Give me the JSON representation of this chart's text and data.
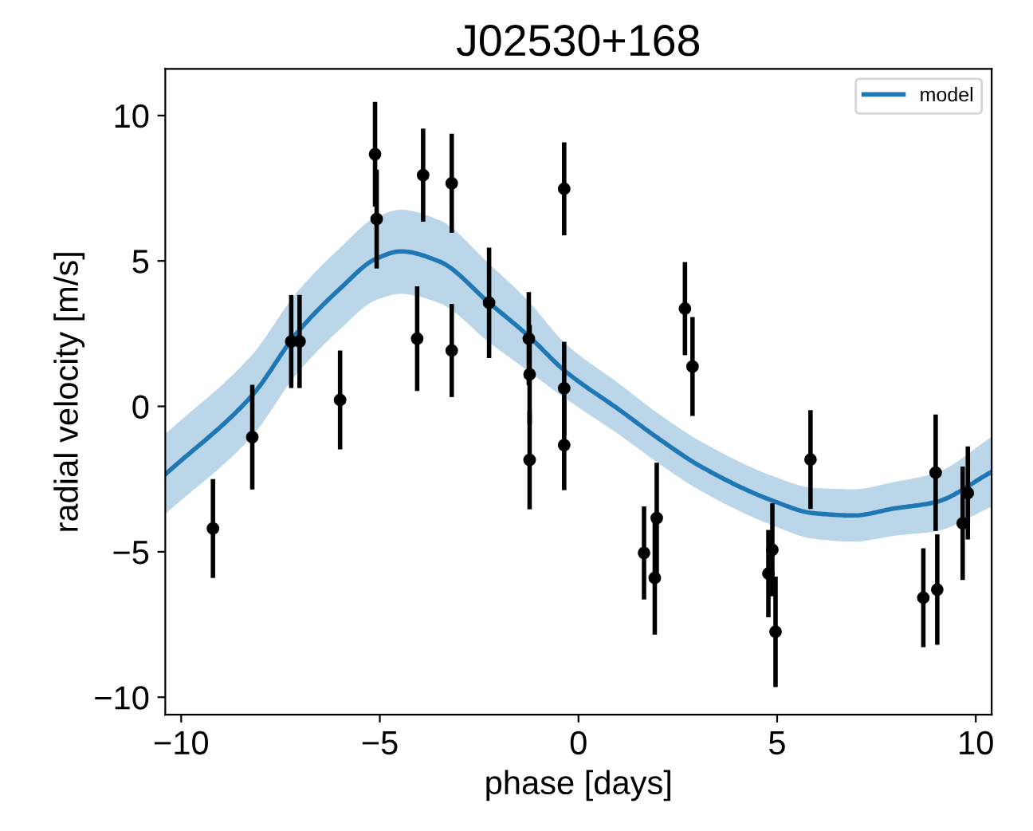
{
  "chart_data": {
    "type": "scatter",
    "title": "J02530+168",
    "xlabel": "phase [days]",
    "ylabel": "radial velocity [m/s]",
    "xlim": [
      -10.4,
      10.4
    ],
    "ylim": [
      -10.6,
      11.6
    ],
    "xticks": [
      {
        "value": -10,
        "label": "−10"
      },
      {
        "value": -5,
        "label": "−5"
      },
      0,
      5,
      10
    ],
    "yticks": [
      {
        "value": -10,
        "label": "−10"
      },
      {
        "value": -5,
        "label": "−5"
      },
      0,
      5,
      10
    ],
    "grid": false,
    "legend": "top right",
    "series": [
      {
        "color": "#000000",
        "marker": "circle",
        "x": [
          -9.2,
          -8.21,
          -7.23,
          -7.02,
          -6.0,
          -5.12,
          -5.08,
          -4.06,
          -3.91,
          -3.19,
          -3.19,
          -2.25,
          -1.25,
          -1.23,
          -1.23,
          -0.36,
          -0.36,
          -0.36,
          2.68,
          2.87,
          1.65,
          1.92,
          1.97,
          4.78,
          4.88,
          4.96,
          5.84,
          8.68,
          8.99,
          9.03,
          9.67,
          9.8
        ],
        "values": [
          -4.2,
          -1.06,
          2.23,
          2.23,
          0.22,
          8.67,
          6.44,
          2.33,
          7.95,
          7.67,
          1.92,
          3.56,
          2.33,
          1.1,
          -1.84,
          7.48,
          0.62,
          -1.33,
          3.36,
          1.37,
          -5.04,
          -5.9,
          -3.84,
          -5.75,
          -4.93,
          -7.75,
          -1.83,
          -6.58,
          -2.28,
          -6.3,
          -4.02,
          -2.98
        ],
        "errors": [
          1.7,
          1.8,
          1.6,
          1.6,
          1.7,
          1.8,
          1.7,
          1.8,
          1.6,
          1.7,
          1.6,
          1.9,
          1.6,
          1.7,
          1.7,
          1.6,
          1.6,
          1.55,
          1.6,
          1.7,
          1.6,
          1.95,
          1.9,
          1.5,
          1.6,
          1.9,
          1.7,
          1.7,
          2.0,
          1.9,
          1.95,
          1.6
        ]
      },
      {
        "type": "line",
        "name": "model",
        "color": "#1f77b4",
        "marker": "none",
        "line_style": "solid",
        "x": [
          -10.4,
          -8.2,
          -7.1,
          -6.0,
          -5.1,
          -4.47,
          -3.5,
          -2.25,
          -1.25,
          -0.36,
          1.05,
          2.06,
          3.07,
          4.9,
          5.9,
          6.93,
          7.95,
          8.97,
          10.4
        ],
        "values": [
          -2.34,
          0.4,
          2.5,
          4.05,
          5.07,
          5.33,
          4.98,
          3.56,
          2.41,
          1.24,
          -0.14,
          -1.15,
          -2.06,
          -3.25,
          -3.67,
          -3.75,
          -3.51,
          -3.3,
          -2.25
        ],
        "lower": [
          -3.7,
          -1.0,
          1.1,
          2.65,
          3.65,
          3.87,
          3.55,
          2.2,
          1.2,
          0.3,
          -1.0,
          -2.0,
          -2.9,
          -4.1,
          -4.55,
          -4.65,
          -4.45,
          -4.3,
          -3.45
        ],
        "upper": [
          -0.95,
          1.8,
          3.9,
          5.45,
          6.5,
          6.76,
          6.4,
          4.9,
          3.6,
          2.2,
          0.75,
          -0.3,
          -1.2,
          -2.4,
          -2.8,
          -2.85,
          -2.6,
          -2.3,
          -1.05
        ]
      }
    ]
  }
}
